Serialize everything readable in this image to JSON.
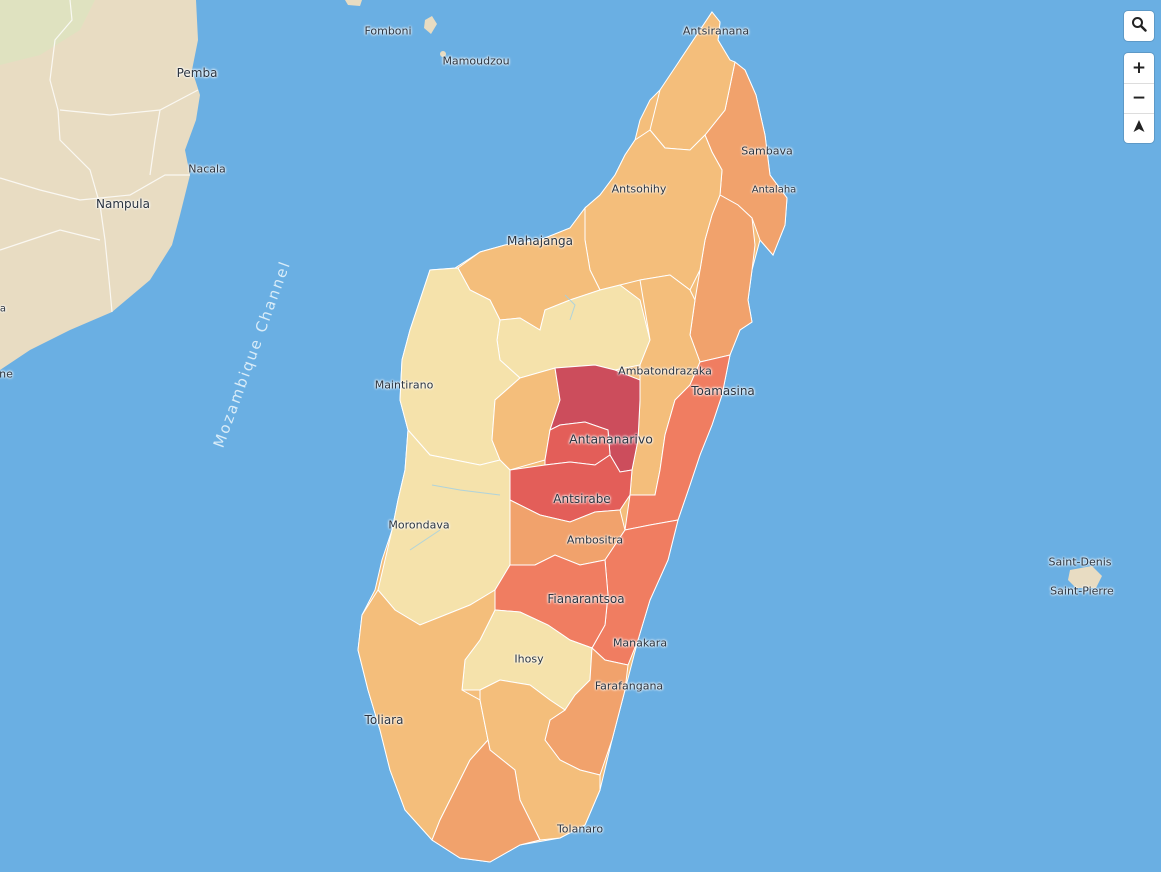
{
  "map": {
    "colors": {
      "ocean": "#6aafe3",
      "mainland": "#e8dcc2",
      "border": "#ffffff",
      "scale_1": "#f5e2ab",
      "scale_2": "#f4be7b",
      "scale_3": "#f1a26c",
      "scale_4": "#f07d61",
      "scale_5": "#e35e59",
      "scale_6": "#cc4d5c"
    },
    "ocean_label": "Mozambique Channel",
    "places": [
      {
        "name": "Fomboni"
      },
      {
        "name": "Mamoudzou"
      },
      {
        "name": "Antsiranana"
      },
      {
        "name": "Pemba"
      },
      {
        "name": "Sambava"
      },
      {
        "name": "Antalaha"
      },
      {
        "name": "Nacala"
      },
      {
        "name": "Antsohihy"
      },
      {
        "name": "Nampula"
      },
      {
        "name": "Mahajanga"
      },
      {
        "name": "Ambatondrazaka"
      },
      {
        "name": "Maintirano"
      },
      {
        "name": "Toamasina"
      },
      {
        "name": "Antananarivo"
      },
      {
        "name": "Antsirabe"
      },
      {
        "name": "Morondava"
      },
      {
        "name": "Ambositra"
      },
      {
        "name": "Fianarantsoa"
      },
      {
        "name": "Manakara"
      },
      {
        "name": "Ihosy"
      },
      {
        "name": "Farafangana"
      },
      {
        "name": "Toliara"
      },
      {
        "name": "Tolanaro"
      },
      {
        "name": "Saint-Denis"
      },
      {
        "name": "Saint-Pierre"
      },
      {
        "name": "a"
      },
      {
        "name": "ne"
      }
    ]
  },
  "controls": {
    "search_icon": "search-icon",
    "zoom_in": "+",
    "zoom_out": "−",
    "compass": "▲"
  }
}
